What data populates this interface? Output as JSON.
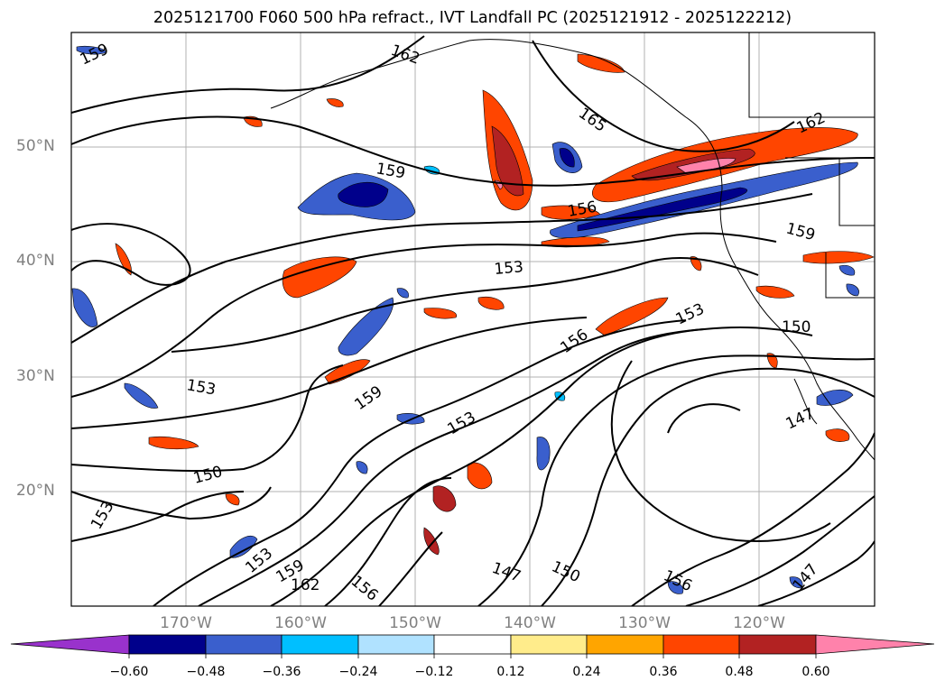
{
  "title": "2025121700 F060 500 hPa refract., IVT Landfall PC (2025121912 - 2025122212)",
  "map": {
    "lat_labels": [
      "50°N",
      "40°N",
      "30°N",
      "20°N"
    ],
    "lon_labels": [
      "170°W",
      "160°W",
      "150°W",
      "140°W",
      "130°W",
      "120°W"
    ],
    "contour_labels": [
      "159",
      "162",
      "165",
      "159",
      "162",
      "156",
      "159",
      "153",
      "153",
      "150",
      "156",
      "153",
      "159",
      "153",
      "150",
      "153",
      "153",
      "159",
      "162",
      "156",
      "147",
      "150",
      "156",
      "147",
      "147"
    ]
  },
  "colorbar": {
    "ticks": [
      "−0.60",
      "−0.48",
      "−0.36",
      "−0.24",
      "−0.12",
      "0.12",
      "0.24",
      "0.36",
      "0.48",
      "0.60"
    ],
    "colors": [
      "#9932cc",
      "#00008b",
      "#3a5fcd",
      "#00bfff",
      "#b0e2ff",
      "#ffffff",
      "#ffec8b",
      "#ffa500",
      "#ff4500",
      "#b22222",
      "#ff82ab"
    ]
  },
  "colors": {
    "grid": "#b0b0b0",
    "coast": "#000000",
    "axis_label": "#808080"
  }
}
